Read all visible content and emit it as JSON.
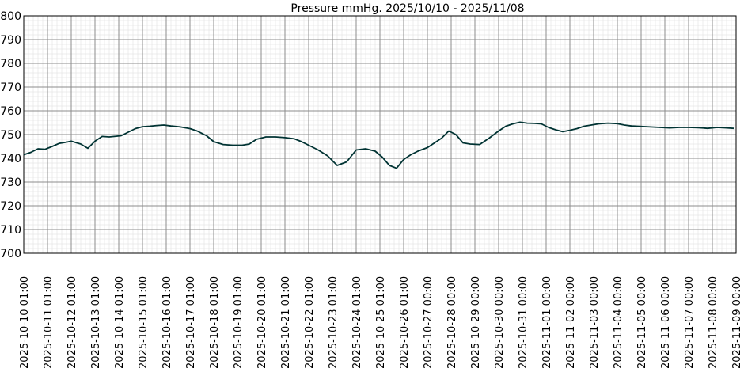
{
  "chart_data": {
    "type": "line",
    "title": "Pressure mmHg. 2025/10/10 - 2025/11/08",
    "xlabel": "",
    "ylabel": "",
    "ylim": [
      700,
      800
    ],
    "yticks": [
      700,
      710,
      720,
      730,
      740,
      750,
      760,
      770,
      780,
      790,
      800
    ],
    "grid": true,
    "legend": "none",
    "x_tick_labels": [
      "2025-10-10 01:00",
      "2025-10-11 01:00",
      "2025-10-12 01:00",
      "2025-10-13 01:00",
      "2025-10-14 01:00",
      "2025-10-15 01:00",
      "2025-10-16 01:00",
      "2025-10-17 01:00",
      "2025-10-18 01:00",
      "2025-10-19 01:00",
      "2025-10-20 01:00",
      "2025-10-21 01:00",
      "2025-10-22 01:00",
      "2025-10-23 01:00",
      "2025-10-24 01:00",
      "2025-10-25 01:00",
      "2025-10-26 01:00",
      "2025-10-27 00:00",
      "2025-10-28 00:00",
      "2025-10-29 00:00",
      "2025-10-30 00:00",
      "2025-10-31 00:00",
      "2025-11-01 00:00",
      "2025-11-02 00:00",
      "2025-11-03 00:00",
      "2025-11-04 00:00",
      "2025-11-05 00:00",
      "2025-11-06 00:00",
      "2025-11-07 00:00",
      "2025-11-08 00:00",
      "2025-11-09 00:00"
    ],
    "colors": {
      "line": "#003333",
      "grid_major": "#8c8c8c",
      "grid_minor": "#dcdcdc",
      "background": "#ffffff"
    },
    "series": [
      {
        "x": [
          0,
          0.3,
          0.6,
          0.9,
          1.2,
          1.5,
          1.8,
          2.0,
          2.4,
          2.7,
          3.0,
          3.3,
          3.6,
          3.9,
          4.1,
          4.4,
          4.7,
          5.0,
          5.3,
          5.6,
          5.9,
          6.2,
          6.6,
          7.0,
          7.3,
          7.7,
          8.0,
          8.4,
          8.8,
          9.2,
          9.5,
          9.8,
          10.2,
          10.6,
          11.0,
          11.4,
          11.7,
          12.0,
          12.4,
          12.8,
          13.2,
          13.6,
          14.0,
          14.4,
          14.8,
          15.1,
          15.4,
          15.7,
          16.0,
          16.3,
          16.6,
          17.0,
          17.3,
          17.6,
          17.9,
          18.2,
          18.5,
          18.8,
          19.2,
          19.6,
          20.0,
          20.3,
          20.6,
          20.9,
          21.2,
          21.5,
          21.8,
          22.1,
          22.4,
          22.7,
          23.0,
          23.3,
          23.6,
          23.9,
          24.2,
          24.6,
          25.0,
          25.3,
          25.6,
          26.0,
          26.4,
          26.8,
          27.2,
          27.6,
          28.0,
          28.4,
          28.8,
          29.2,
          29.6,
          29.9
        ],
        "y": [
          741.5,
          742.5,
          744,
          743.8,
          745,
          746.3,
          746.8,
          747.2,
          746,
          744.2,
          747.2,
          749.2,
          749,
          749.3,
          749.5,
          751,
          752.5,
          753.3,
          753.5,
          753.8,
          754,
          753.6,
          753.2,
          752.5,
          751.5,
          749.5,
          747,
          745.8,
          745.5,
          745.5,
          746,
          748,
          749,
          749,
          748.7,
          748.2,
          747,
          745.5,
          743.5,
          741,
          737,
          738.5,
          743.5,
          744,
          743,
          740.5,
          737,
          735.8,
          739.5,
          741.5,
          743,
          744.5,
          746.5,
          748.5,
          751.5,
          750,
          746.5,
          746,
          745.8,
          748.5,
          751.5,
          753.5,
          754.5,
          755.2,
          754.8,
          754.7,
          754.5,
          753,
          752,
          751.2,
          751.8,
          752.5,
          753.5,
          754,
          754.5,
          754.8,
          754.6,
          754,
          753.6,
          753.4,
          753.2,
          753,
          752.8,
          753,
          753,
          752.9,
          752.6,
          753,
          752.8,
          752.6
        ]
      }
    ]
  }
}
